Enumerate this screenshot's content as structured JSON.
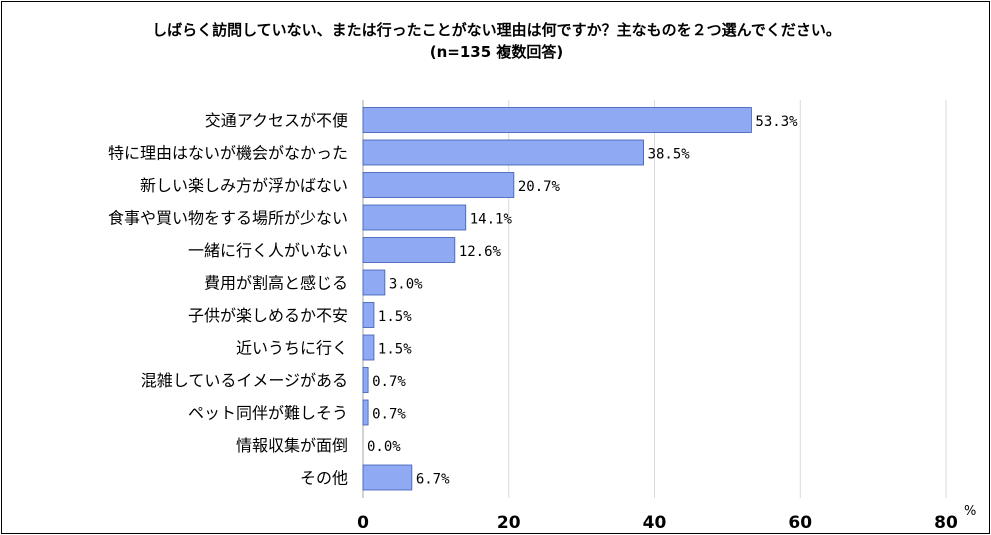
{
  "chart_data": {
    "type": "bar",
    "orientation": "horizontal",
    "title": "しばらく訪問していない、または行ったことがない理由は何ですか？主なものを２つ選んでください。",
    "subtitle": "(n=135 複数回答)",
    "categories": [
      "交通アクセスが不便",
      "特に理由はないが機会がなかった",
      "新しい楽しみ方が浮かばない",
      "食事や買い物をする場所が少ない",
      "一緒に行く人がいない",
      "費用が割高と感じる",
      "子供が楽しめるか不安",
      "近いうちに行く",
      "混雑しているイメージがある",
      "ペット同伴が難しそう",
      "情報収集が面倒",
      "その他"
    ],
    "values": [
      53.3,
      38.5,
      20.7,
      14.1,
      12.6,
      3.0,
      1.5,
      1.5,
      0.7,
      0.7,
      0.0,
      6.7
    ],
    "value_labels": [
      "53.3%",
      "38.5%",
      "20.7%",
      "14.1%",
      "12.6%",
      "3.0%",
      "1.5%",
      "1.5%",
      "0.7%",
      "0.7%",
      "0.0%",
      "6.7%"
    ],
    "xlim": [
      0,
      80
    ],
    "x_ticks": [
      0,
      20,
      40,
      60,
      80
    ],
    "x_tick_labels": [
      "0",
      "20",
      "40",
      "60",
      "80"
    ],
    "x_unit": "%",
    "grid": true,
    "bar_color": "#8FA9F2",
    "bar_edge_color": "#3B5BB5",
    "grid_color": "#D9D9D9"
  }
}
